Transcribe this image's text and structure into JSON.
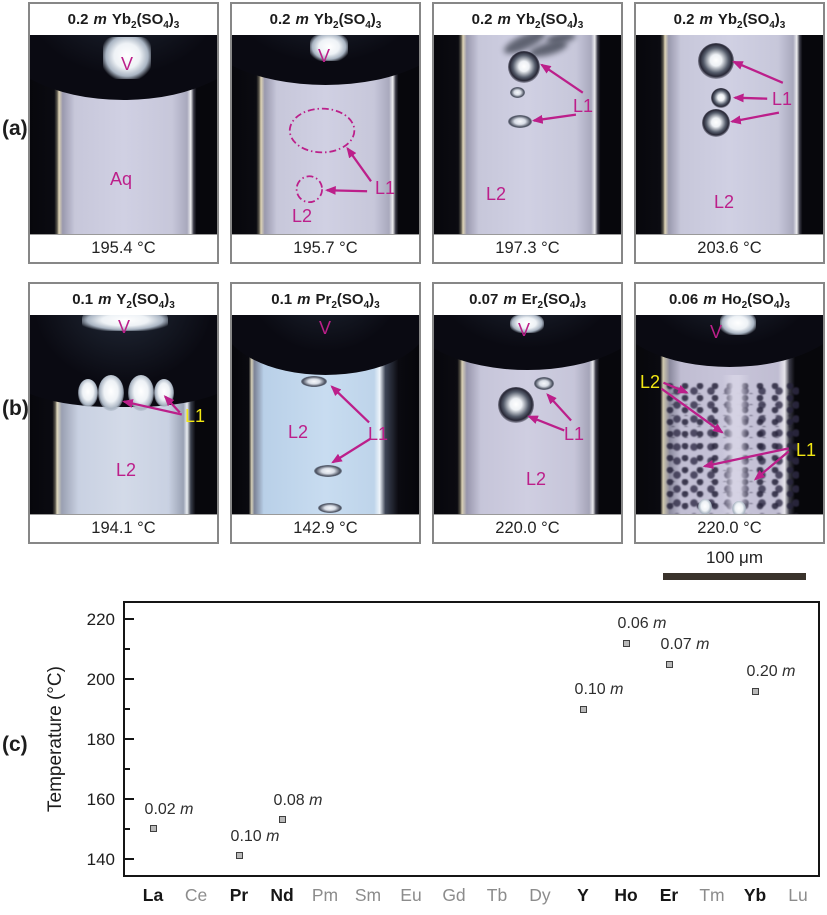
{
  "figure_labels": {
    "a": "(a)",
    "b": "(b)",
    "c": "(c)"
  },
  "chem": {
    "unit": "m",
    "sub2": "2",
    "so4": "(SO",
    "sub4": "4",
    "close": ")",
    "sub3": "3"
  },
  "ann": {
    "v": "V",
    "aq": "Aq",
    "l1": "L1",
    "l2": "L2"
  },
  "scalebar": {
    "label": "100 μm"
  },
  "panels_a": [
    {
      "conc": "0.2",
      "cation": "Yb",
      "temp": "195.4 °C"
    },
    {
      "conc": "0.2",
      "cation": "Yb",
      "temp": "195.7 °C"
    },
    {
      "conc": "0.2",
      "cation": "Yb",
      "temp": "197.3 °C"
    },
    {
      "conc": "0.2",
      "cation": "Yb",
      "temp": "203.6 °C"
    }
  ],
  "panels_b": [
    {
      "conc": "0.1",
      "cation": "Y",
      "temp": "194.1 °C"
    },
    {
      "conc": "0.1",
      "cation": "Pr",
      "temp": "142.9 °C"
    },
    {
      "conc": "0.07",
      "cation": "Er",
      "temp": "220.0 °C"
    },
    {
      "conc": "0.06",
      "cation": "Ho",
      "temp": "220.0 °C"
    }
  ],
  "chart_data": {
    "type": "scatter",
    "ylabel": "Temperature (°C)",
    "categories": [
      "La",
      "Ce",
      "Pr",
      "Nd",
      "Pm",
      "Sm",
      "Eu",
      "Gd",
      "Tb",
      "Dy",
      "Y",
      "Ho",
      "Er",
      "Tm",
      "Yb",
      "Lu"
    ],
    "bold_categories": [
      "La",
      "Pr",
      "Nd",
      "Y",
      "Ho",
      "Er",
      "Yb"
    ],
    "points": [
      {
        "element": "La",
        "temperature": 150,
        "conc": "0.02"
      },
      {
        "element": "Pr",
        "temperature": 141,
        "conc": "0.10"
      },
      {
        "element": "Nd",
        "temperature": 153,
        "conc": "0.08"
      },
      {
        "element": "Y",
        "temperature": 190,
        "conc": "0.10"
      },
      {
        "element": "Ho",
        "temperature": 212,
        "conc": "0.06"
      },
      {
        "element": "Er",
        "temperature": 205,
        "conc": "0.07"
      },
      {
        "element": "Yb",
        "temperature": 196,
        "conc": "0.20"
      }
    ],
    "conc_unit": "m",
    "ylim": [
      134.5,
      225.5
    ],
    "yticks": [
      140,
      160,
      180,
      200,
      220
    ],
    "minor_yticks": [
      150,
      170,
      190,
      210
    ],
    "grid": false,
    "legend": "none",
    "marker": {
      "shape": "square",
      "fill": "#b9b9b9",
      "stroke": "#3f3f3f"
    },
    "accent_colors": {
      "annotation_magenta": "#bc1f8a",
      "annotation_yellow": "#f2e713"
    }
  }
}
